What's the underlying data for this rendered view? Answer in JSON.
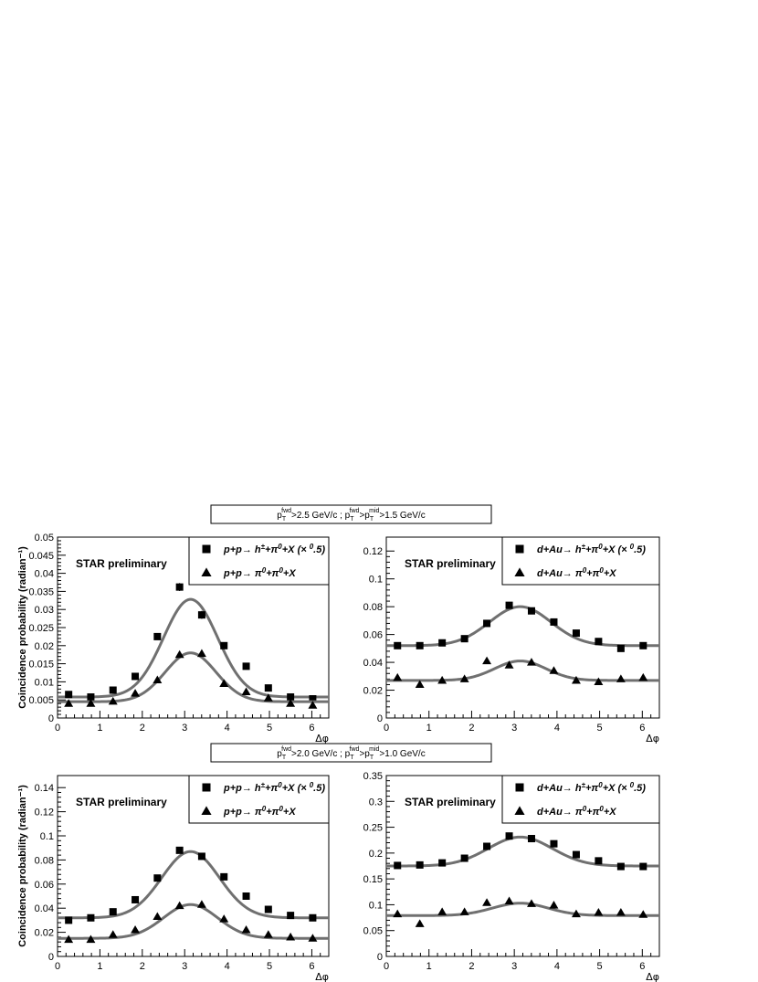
{
  "cut_labels": [
    "p_T^fwd>2.5 GeV/c ; p_T^fwd>p_T^mid>1.5 GeV/c",
    "p_T^fwd>2.0 GeV/c ; p_T^fwd>p_T^mid>1.0 GeV/c"
  ],
  "text": {
    "preliminary": "STAR preliminary",
    "ylabel": "Coincidence probability (radian⁻¹)",
    "xlabel": "Δφ"
  },
  "colors": {
    "fit_curve": "#707070",
    "markers": "#000000",
    "frame": "#000000"
  },
  "chart_data": [
    {
      "type": "scatter",
      "panel": "top-left",
      "ylabel": "Coincidence probability (radian⁻¹)",
      "xlabel": "Δφ",
      "xlim": [
        0,
        6.4
      ],
      "ylim": [
        0,
        0.05
      ],
      "xticks": [
        0,
        1,
        2,
        3,
        4,
        5,
        6
      ],
      "yticks": [
        0,
        0.005,
        0.01,
        0.015,
        0.02,
        0.025,
        0.03,
        0.035,
        0.04,
        0.045,
        0.05
      ],
      "ytick_labels": [
        "0",
        "0.005",
        "0.01",
        "0.015",
        "0.02",
        "0.025",
        "0.03",
        "0.035",
        "0.04",
        "0.045",
        "0.05"
      ],
      "legend_position": "top-right",
      "series": [
        {
          "name": "p+p→ h±+π0+X (× 0.5)",
          "marker": "square",
          "x": [
            0.262,
            0.785,
            1.309,
            1.833,
            2.356,
            2.88,
            3.403,
            3.927,
            4.451,
            4.974,
            5.498,
            6.021
          ],
          "y": [
            0.0065,
            0.0058,
            0.0077,
            0.0115,
            0.0225,
            0.0362,
            0.0285,
            0.02,
            0.0143,
            0.0083,
            0.0058,
            0.0053
          ],
          "err": [
            0,
            0,
            0,
            0,
            0.0008,
            0.0011,
            0.0011,
            0.0007,
            0.0005,
            0,
            0,
            0
          ],
          "fit": {
            "base": 0.0058,
            "amp": 0.027,
            "mean": 3.14,
            "sigma": 0.64
          }
        },
        {
          "name": "p+p→ π0+π0+X",
          "marker": "triangle",
          "x": [
            0.262,
            0.785,
            1.309,
            1.833,
            2.356,
            2.88,
            3.403,
            3.927,
            4.451,
            4.974,
            5.498,
            6.021
          ],
          "y": [
            0.004,
            0.004,
            0.0046,
            0.0068,
            0.0105,
            0.0175,
            0.0178,
            0.0095,
            0.0072,
            0.0055,
            0.004,
            0.0035
          ],
          "err": [
            0,
            0,
            0,
            0,
            0,
            0.0008,
            0.0008,
            0,
            0,
            0,
            0,
            0
          ],
          "fit": {
            "base": 0.0045,
            "amp": 0.0135,
            "mean": 3.14,
            "sigma": 0.6
          }
        }
      ]
    },
    {
      "type": "scatter",
      "panel": "top-right",
      "xlabel": "Δφ",
      "xlim": [
        0,
        6.4
      ],
      "ylim": [
        0,
        0.13
      ],
      "xticks": [
        0,
        1,
        2,
        3,
        4,
        5,
        6
      ],
      "yticks": [
        0,
        0.02,
        0.04,
        0.06,
        0.08,
        0.1,
        0.12
      ],
      "ytick_labels": [
        "0",
        "0.02",
        "0.04",
        "0.06",
        "0.08",
        "0.1",
        "0.12"
      ],
      "legend_position": "top-right",
      "series": [
        {
          "name": "d+Au→ h±+π0+X (× 0.5)",
          "marker": "square",
          "x": [
            0.262,
            0.785,
            1.309,
            1.833,
            2.356,
            2.88,
            3.403,
            3.927,
            4.451,
            4.974,
            5.498,
            6.021
          ],
          "y": [
            0.052,
            0.052,
            0.054,
            0.057,
            0.068,
            0.081,
            0.077,
            0.069,
            0.061,
            0.055,
            0.05,
            0.052
          ],
          "err": [
            0,
            0,
            0,
            0,
            0,
            0,
            0,
            0,
            0,
            0,
            0,
            0
          ],
          "fit": {
            "base": 0.052,
            "amp": 0.028,
            "mean": 3.14,
            "sigma": 0.72
          }
        },
        {
          "name": "d+Au→ π0+π0+X",
          "marker": "triangle",
          "x": [
            0.262,
            0.785,
            1.309,
            1.833,
            2.356,
            2.88,
            3.403,
            3.927,
            4.451,
            4.974,
            5.498,
            6.021
          ],
          "y": [
            0.029,
            0.024,
            0.027,
            0.028,
            0.041,
            0.038,
            0.04,
            0.034,
            0.027,
            0.026,
            0.028,
            0.029
          ],
          "err": [
            0,
            0,
            0,
            0,
            0,
            0,
            0,
            0,
            0,
            0,
            0,
            0
          ],
          "fit": {
            "base": 0.027,
            "amp": 0.014,
            "mean": 3.14,
            "sigma": 0.6
          }
        }
      ]
    },
    {
      "type": "scatter",
      "panel": "bottom-left",
      "ylabel": "Coincidence probability (radian⁻¹)",
      "xlabel": "Δφ",
      "xlim": [
        0,
        6.4
      ],
      "ylim": [
        0,
        0.15
      ],
      "xticks": [
        0,
        1,
        2,
        3,
        4,
        5,
        6
      ],
      "yticks": [
        0,
        0.02,
        0.04,
        0.06,
        0.08,
        0.1,
        0.12,
        0.14
      ],
      "ytick_labels": [
        "0",
        "0.02",
        "0.04",
        "0.06",
        "0.08",
        "0.1",
        "0.12",
        "0.14"
      ],
      "legend_position": "top-right",
      "series": [
        {
          "name": "p+p→ h±+π0+X (× 0.5)",
          "marker": "square",
          "x": [
            0.262,
            0.785,
            1.309,
            1.833,
            2.356,
            2.88,
            3.403,
            3.927,
            4.451,
            4.974,
            5.498,
            6.021
          ],
          "y": [
            0.03,
            0.032,
            0.037,
            0.047,
            0.065,
            0.088,
            0.083,
            0.066,
            0.05,
            0.039,
            0.034,
            0.032
          ],
          "err": [
            0,
            0,
            0,
            0,
            0,
            0,
            0,
            0,
            0,
            0,
            0,
            0
          ],
          "fit": {
            "base": 0.032,
            "amp": 0.055,
            "mean": 3.14,
            "sigma": 0.68
          }
        },
        {
          "name": "p+p→ π0+π0+X",
          "marker": "triangle",
          "x": [
            0.262,
            0.785,
            1.309,
            1.833,
            2.356,
            2.88,
            3.403,
            3.927,
            4.451,
            4.974,
            5.498,
            6.021
          ],
          "y": [
            0.014,
            0.014,
            0.018,
            0.022,
            0.033,
            0.042,
            0.043,
            0.031,
            0.022,
            0.018,
            0.016,
            0.015
          ],
          "err": [
            0,
            0,
            0,
            0,
            0,
            0,
            0,
            0,
            0,
            0,
            0,
            0
          ],
          "fit": {
            "base": 0.015,
            "amp": 0.028,
            "mean": 3.14,
            "sigma": 0.64
          }
        }
      ]
    },
    {
      "type": "scatter",
      "panel": "bottom-right",
      "xlabel": "Δφ",
      "xlim": [
        0,
        6.4
      ],
      "ylim": [
        0,
        0.35
      ],
      "xticks": [
        0,
        1,
        2,
        3,
        4,
        5,
        6
      ],
      "yticks": [
        0,
        0.05,
        0.1,
        0.15,
        0.2,
        0.25,
        0.3,
        0.35
      ],
      "ytick_labels": [
        "0",
        "0.05",
        "0.1",
        "0.15",
        "0.2",
        "0.25",
        "0.3",
        "0.35"
      ],
      "legend_position": "top-right",
      "series": [
        {
          "name": "d+Au→ h±+π0+X (× 0.5)",
          "marker": "square",
          "x": [
            0.262,
            0.785,
            1.309,
            1.833,
            2.356,
            2.88,
            3.403,
            3.927,
            4.451,
            4.974,
            5.498,
            6.021
          ],
          "y": [
            0.176,
            0.177,
            0.181,
            0.19,
            0.213,
            0.233,
            0.228,
            0.218,
            0.197,
            0.185,
            0.174,
            0.174
          ],
          "err": [
            0,
            0,
            0,
            0,
            0,
            0,
            0,
            0,
            0,
            0,
            0,
            0
          ],
          "fit": {
            "base": 0.175,
            "amp": 0.056,
            "mean": 3.14,
            "sigma": 0.75
          }
        },
        {
          "name": "d+Au→ π0+π0+X",
          "marker": "triangle",
          "x": [
            0.262,
            0.785,
            1.309,
            1.833,
            2.356,
            2.88,
            3.403,
            3.927,
            4.451,
            4.974,
            5.498,
            6.021
          ],
          "y": [
            0.082,
            0.063,
            0.086,
            0.086,
            0.104,
            0.107,
            0.102,
            0.099,
            0.082,
            0.085,
            0.085,
            0.081
          ],
          "err": [
            0,
            0,
            0,
            0,
            0,
            0,
            0,
            0,
            0,
            0,
            0,
            0
          ],
          "fit": {
            "base": 0.079,
            "amp": 0.024,
            "mean": 3.14,
            "sigma": 0.65
          }
        }
      ]
    }
  ]
}
